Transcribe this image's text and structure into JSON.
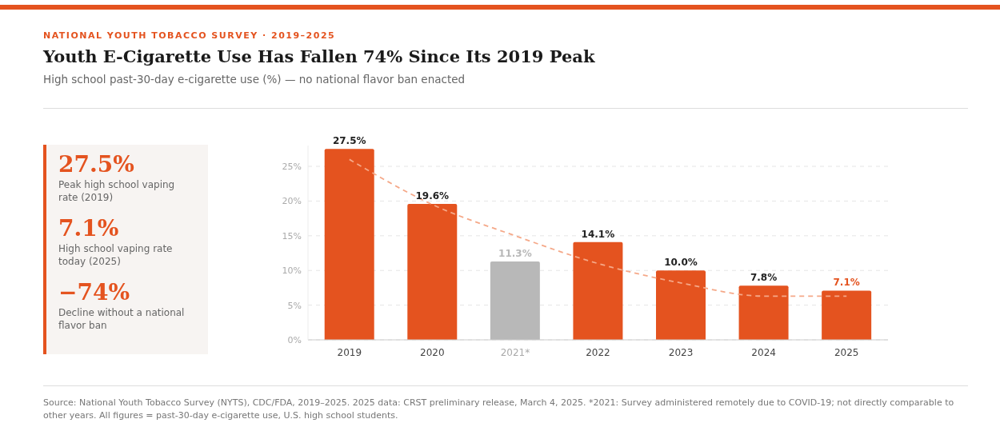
{
  "chart_data": {
    "type": "bar",
    "title": "Youth E-Cigarette Use Has Fallen 74% Since Its 2019 Peak",
    "subtitle": "High school past-30-day e-cigarette use (%) — no national flavor ban enacted",
    "categories": [
      "2019",
      "2020",
      "2021*",
      "2022",
      "2023",
      "2024",
      "2025"
    ],
    "series": [
      {
        "type": "line",
        "color": "#f5a888",
        "line_style": "dashed",
        "marker": "none",
        "values": [
          26,
          19.5,
          15,
          11,
          8.2,
          6.3,
          6.3
        ]
      },
      {
        "color": "#e4531f",
        "colors": [
          "#e4531f",
          "#e4531f",
          "#b8b8b8",
          "#e4531f",
          "#e4531f",
          "#e4531f",
          "#e4531f"
        ],
        "values": [
          27.5,
          19.6,
          11.3,
          14.1,
          10.0,
          7.8,
          7.1
        ],
        "value_labels": [
          "27.5%",
          "19.6%",
          "11.3%",
          "14.1%",
          "10.0%",
          "7.8%",
          "7.1%"
        ]
      }
    ],
    "ylim": [
      0,
      28
    ],
    "yticks": [
      {
        "value": 0,
        "label": "0%"
      },
      {
        "value": 5,
        "label": "5%"
      },
      {
        "value": 10,
        "label": "10%"
      },
      {
        "value": 15,
        "label": "15%"
      },
      {
        "value": 20,
        "label": "20%"
      },
      {
        "value": 25,
        "label": "25%"
      }
    ],
    "grid": "y",
    "legend": false,
    "annotations": [
      "NATIONAL YOUTH TOBACCO SURVEY · 2019–2025",
      "27.5%",
      "Peak high school vaping rate (2019)",
      "7.1%",
      "High school vaping rate today (2025)",
      "−74%",
      "Decline without a national flavor ban",
      "Source: National Youth Tobacco Survey (NYTS), CDC/FDA, 2019–2025. 2025 data: CRST preliminary release, March 4, 2025.   *2021: Survey administered remotely due to COVID-19; not directly comparable to other years.   All figures = past-30-day e-cigarette use, U.S. high school students."
    ]
  }
}
